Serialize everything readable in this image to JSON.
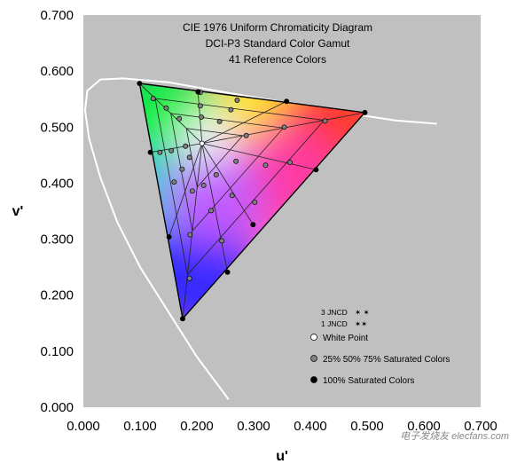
{
  "chart_data": {
    "type": "scatter",
    "title_lines": [
      "CIE 1976 Uniform Chromaticity Diagram",
      "DCI-P3 Standard Color Gamut",
      "41 Reference Colors"
    ],
    "xlabel": "u'",
    "ylabel": "v'",
    "xlim": [
      0.0,
      0.7
    ],
    "ylim": [
      0.0,
      0.7
    ],
    "x_ticks": [
      "0.000",
      "0.100",
      "0.200",
      "0.300",
      "0.400",
      "0.500",
      "0.600",
      "0.700"
    ],
    "y_ticks": [
      "0.000",
      "0.100",
      "0.200",
      "0.300",
      "0.400",
      "0.500",
      "0.600",
      "0.700"
    ],
    "grid": false,
    "background": "#c0c0c0",
    "spectral_locus": [
      [
        0.256,
        0.014
      ],
      [
        0.2,
        0.09
      ],
      [
        0.15,
        0.17
      ],
      [
        0.1,
        0.25
      ],
      [
        0.06,
        0.33
      ],
      [
        0.03,
        0.41
      ],
      [
        0.01,
        0.48
      ],
      [
        0.003,
        0.53
      ],
      [
        0.007,
        0.565
      ],
      [
        0.03,
        0.585
      ],
      [
        0.07,
        0.587
      ],
      [
        0.15,
        0.58
      ],
      [
        0.25,
        0.562
      ],
      [
        0.35,
        0.545
      ],
      [
        0.45,
        0.527
      ],
      [
        0.55,
        0.512
      ],
      [
        0.623,
        0.506
      ]
    ],
    "gamut_triangle": {
      "red": [
        0.496,
        0.526
      ],
      "green": [
        0.099,
        0.578
      ],
      "blue": [
        0.175,
        0.158
      ]
    },
    "white_point": [
      0.209,
      0.471
    ],
    "series": [
      {
        "name": "White Point",
        "color": "#ffffff",
        "points": [
          [
            0.209,
            0.471
          ]
        ]
      },
      {
        "name": "25% 50% 75% Saturated Colors",
        "color": "#808080",
        "points": [
          [
            0.123,
            0.551
          ],
          [
            0.146,
            0.534
          ],
          [
            0.169,
            0.515
          ],
          [
            0.206,
            0.562
          ],
          [
            0.206,
            0.538
          ],
          [
            0.208,
            0.518
          ],
          [
            0.271,
            0.548
          ],
          [
            0.26,
            0.531
          ],
          [
            0.24,
            0.51
          ],
          [
            0.426,
            0.511
          ],
          [
            0.354,
            0.5
          ],
          [
            0.287,
            0.485
          ],
          [
            0.364,
            0.437
          ],
          [
            0.321,
            0.432
          ],
          [
            0.269,
            0.439
          ],
          [
            0.302,
            0.366
          ],
          [
            0.262,
            0.378
          ],
          [
            0.234,
            0.415
          ],
          [
            0.244,
            0.297
          ],
          [
            0.225,
            0.351
          ],
          [
            0.212,
            0.396
          ],
          [
            0.187,
            0.23
          ],
          [
            0.188,
            0.308
          ],
          [
            0.192,
            0.386
          ],
          [
            0.16,
            0.402
          ],
          [
            0.174,
            0.425
          ],
          [
            0.187,
            0.446
          ],
          [
            0.135,
            0.455
          ],
          [
            0.155,
            0.458
          ],
          [
            0.18,
            0.466
          ]
        ]
      },
      {
        "name": "100% Saturated Colors",
        "color": "#000000",
        "points": [
          [
            0.099,
            0.578
          ],
          [
            0.496,
            0.526
          ],
          [
            0.175,
            0.158
          ],
          [
            0.202,
            0.563
          ],
          [
            0.358,
            0.546
          ],
          [
            0.41,
            0.424
          ],
          [
            0.299,
            0.326
          ],
          [
            0.254,
            0.241
          ],
          [
            0.151,
            0.304
          ],
          [
            0.118,
            0.455
          ]
        ]
      }
    ],
    "jncd_labels": [
      "3 JNCD",
      "1 JNCD"
    ],
    "legend": [
      "White Point",
      "25% 50% 75% Saturated Colors",
      "100% Saturated Colors"
    ],
    "legend_placement": "lower-right",
    "watermark": "电子发烧友 elecfans.com"
  }
}
